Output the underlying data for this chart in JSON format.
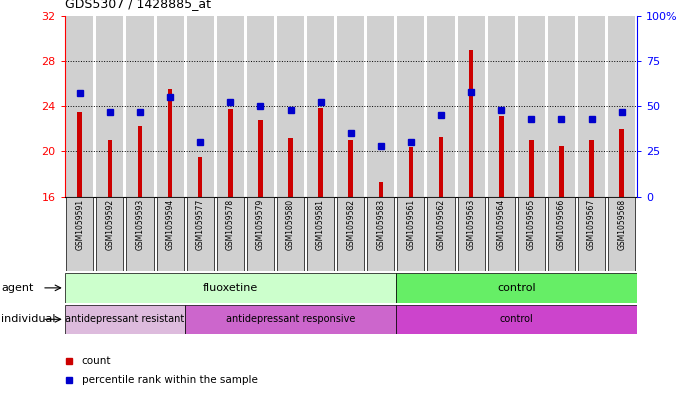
{
  "title": "GDS5307 / 1428885_at",
  "samples": [
    "GSM1059591",
    "GSM1059592",
    "GSM1059593",
    "GSM1059594",
    "GSM1059577",
    "GSM1059578",
    "GSM1059579",
    "GSM1059580",
    "GSM1059581",
    "GSM1059582",
    "GSM1059583",
    "GSM1059561",
    "GSM1059562",
    "GSM1059563",
    "GSM1059564",
    "GSM1059565",
    "GSM1059566",
    "GSM1059567",
    "GSM1059568"
  ],
  "counts": [
    23.5,
    21.0,
    22.2,
    25.5,
    19.5,
    23.7,
    22.8,
    21.2,
    23.8,
    21.0,
    17.3,
    20.4,
    21.3,
    29.0,
    23.1,
    21.0,
    20.5,
    21.0,
    22.0
  ],
  "percentiles": [
    57,
    47,
    47,
    55,
    30,
    52,
    50,
    48,
    52,
    35,
    28,
    30,
    45,
    58,
    48,
    43,
    43,
    43,
    47
  ],
  "ymin": 16,
  "ymax": 32,
  "yticks_left": [
    16,
    20,
    24,
    28,
    32
  ],
  "yticks_right": [
    0,
    25,
    50,
    75,
    100
  ],
  "grid_levels": [
    20,
    24,
    28
  ],
  "bar_color": "#cc0000",
  "dot_color": "#0000cc",
  "cell_bg": "#d0d0d0",
  "agent_groups": [
    {
      "label": "fluoxetine",
      "start": 0,
      "end": 10,
      "color": "#ccffcc"
    },
    {
      "label": "control",
      "start": 11,
      "end": 18,
      "color": "#66ee66"
    }
  ],
  "individual_groups": [
    {
      "label": "antidepressant resistant",
      "start": 0,
      "end": 3,
      "color": "#ddbbdd"
    },
    {
      "label": "antidepressant responsive",
      "start": 4,
      "end": 10,
      "color": "#cc66cc"
    },
    {
      "label": "control",
      "start": 11,
      "end": 18,
      "color": "#cc44cc"
    }
  ],
  "legend_items": [
    {
      "label": "count",
      "color": "#cc0000"
    },
    {
      "label": "percentile rank within the sample",
      "color": "#0000cc"
    }
  ]
}
